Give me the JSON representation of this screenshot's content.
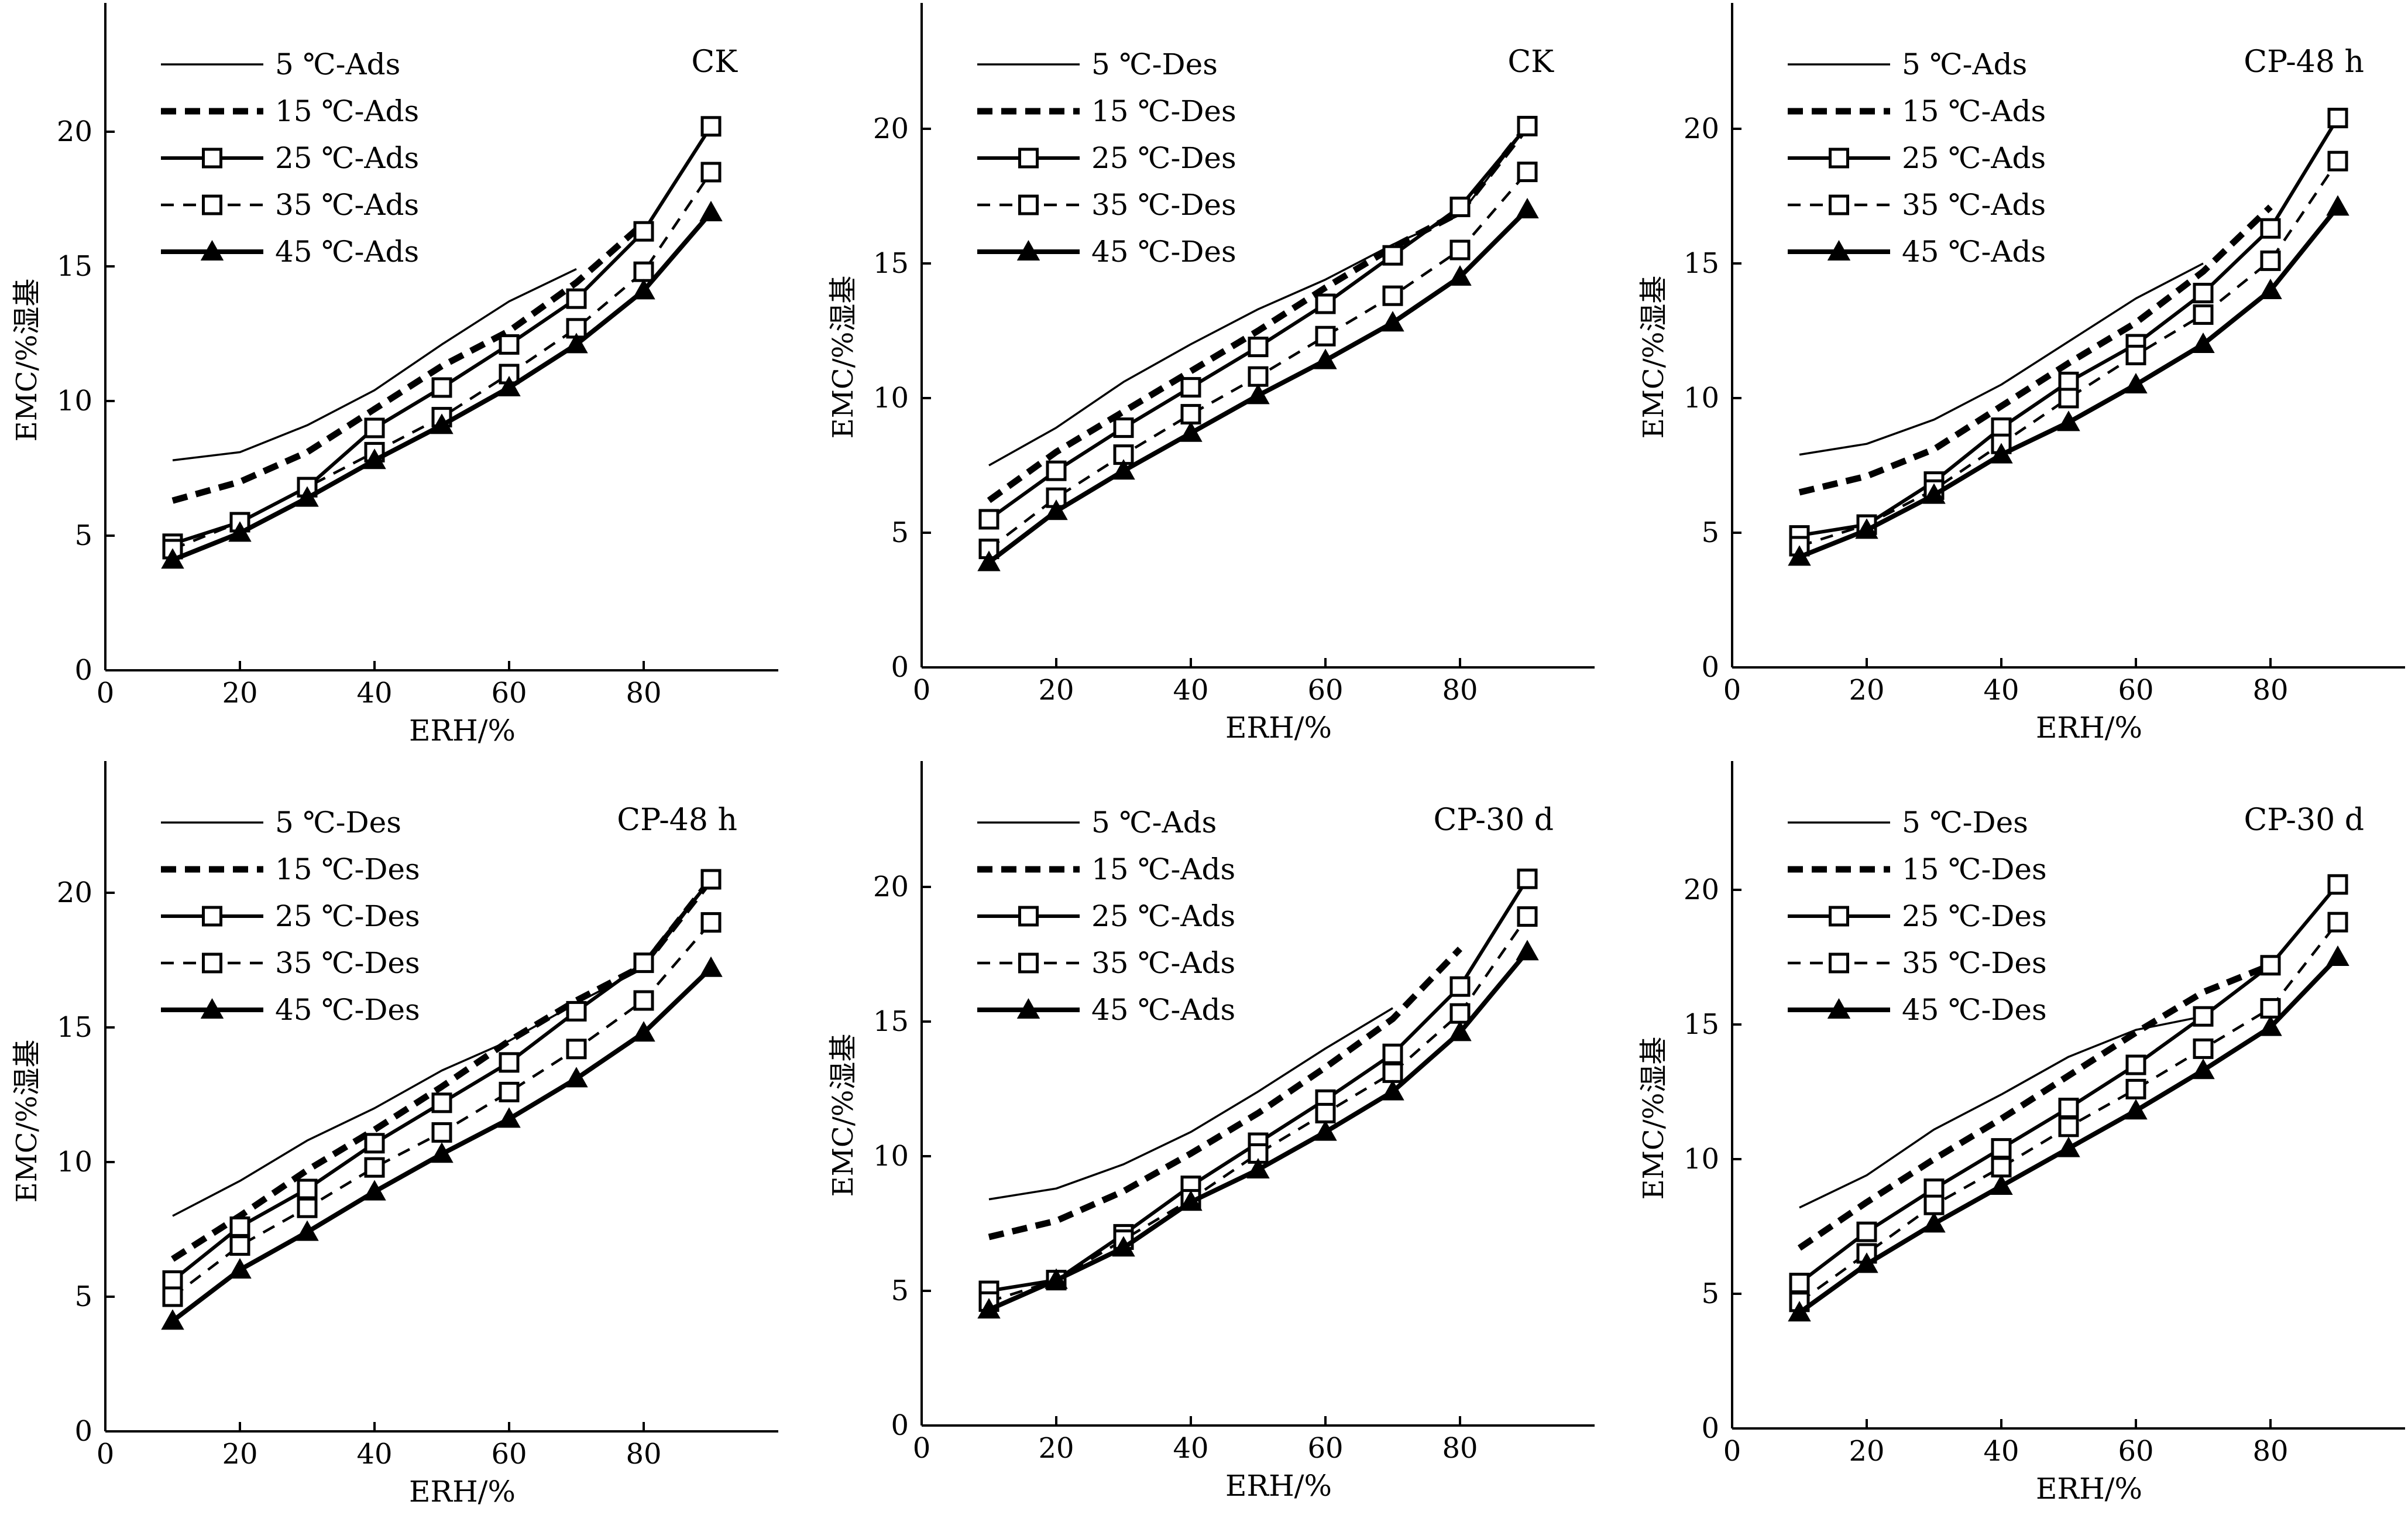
{
  "chart_data": [
    {
      "type": "line",
      "title": "CK",
      "xlabel": "ERH/%",
      "ylabel": "EMC/%湿基",
      "xlim": [
        0,
        100
      ],
      "ylim": [
        0,
        25
      ],
      "xticks": [
        "0",
        "20",
        "40",
        "60",
        "80"
      ],
      "yticks": [
        "0",
        "5",
        "10",
        "15",
        "20"
      ],
      "grid": false,
      "legend_position": "top-left",
      "series": [
        {
          "name": "5 ℃-Ads",
          "x": [
            10,
            20,
            30,
            40,
            50,
            60,
            70
          ],
          "values": [
            7.8,
            8.1,
            9.1,
            10.4,
            12.1,
            13.7,
            14.9
          ]
        },
        {
          "name": "15 ℃-Ads",
          "x": [
            10,
            20,
            30,
            40,
            50,
            60,
            70,
            80
          ],
          "values": [
            6.3,
            7.0,
            8.1,
            9.7,
            11.3,
            12.6,
            14.4,
            16.6
          ]
        },
        {
          "name": "25 ℃-Ads",
          "x": [
            10,
            20,
            30,
            40,
            50,
            60,
            70,
            80,
            90
          ],
          "values": [
            4.7,
            5.5,
            6.8,
            9.0,
            10.5,
            12.1,
            13.8,
            16.3,
            20.2
          ]
        },
        {
          "name": "35 ℃-Ads",
          "x": [
            10,
            20,
            30,
            40,
            50,
            60,
            70,
            80,
            90
          ],
          "values": [
            4.5,
            5.5,
            6.8,
            8.1,
            9.4,
            11.0,
            12.7,
            14.8,
            18.5
          ]
        },
        {
          "name": "45 ℃-Ads",
          "x": [
            10,
            20,
            30,
            40,
            50,
            60,
            70,
            80,
            90
          ],
          "values": [
            4.1,
            5.1,
            6.4,
            7.8,
            9.1,
            10.5,
            12.1,
            14.1,
            17.0
          ]
        }
      ]
    },
    {
      "type": "line",
      "title": "CK",
      "xlabel": "ERH/%",
      "ylabel": "EMC/%湿基",
      "xlim": [
        0,
        100
      ],
      "ylim": [
        0,
        25
      ],
      "xticks": [
        "0",
        "20",
        "40",
        "60",
        "80"
      ],
      "yticks": [
        "0",
        "5",
        "10",
        "15",
        "20"
      ],
      "grid": false,
      "legend_position": "top-left",
      "series": [
        {
          "name": "5 ℃-Des",
          "x": [
            10,
            20,
            30,
            40,
            50,
            60,
            70,
            80,
            90
          ],
          "values": [
            7.5,
            8.9,
            10.6,
            12.0,
            13.3,
            14.4,
            15.7,
            16.8,
            20.1
          ]
        },
        {
          "name": "15 ℃-Des",
          "x": [
            10,
            20,
            30,
            40,
            50,
            60,
            70,
            80,
            90
          ],
          "values": [
            6.2,
            8.0,
            9.5,
            11.0,
            12.5,
            14.1,
            15.6,
            16.9,
            20.1
          ]
        },
        {
          "name": "25 ℃-Des",
          "x": [
            10,
            20,
            30,
            40,
            50,
            60,
            70,
            80,
            90
          ],
          "values": [
            5.5,
            7.3,
            8.9,
            10.4,
            11.9,
            13.5,
            15.3,
            17.1,
            20.1
          ]
        },
        {
          "name": "35 ℃-Des",
          "x": [
            10,
            20,
            30,
            40,
            50,
            60,
            70,
            80,
            90
          ],
          "values": [
            4.4,
            6.3,
            7.9,
            9.4,
            10.8,
            12.3,
            13.8,
            15.5,
            18.4
          ]
        },
        {
          "name": "45 ℃-Des",
          "x": [
            10,
            20,
            30,
            40,
            50,
            60,
            70,
            80,
            90
          ],
          "values": [
            3.9,
            5.8,
            7.3,
            8.7,
            10.1,
            11.4,
            12.8,
            14.5,
            17.0
          ]
        }
      ]
    },
    {
      "type": "line",
      "title": "CP-48 h",
      "xlabel": "ERH/%",
      "ylabel": "EMC/%湿基",
      "xlim": [
        0,
        100
      ],
      "ylim": [
        0,
        25
      ],
      "xticks": [
        "0",
        "20",
        "40",
        "60",
        "80"
      ],
      "yticks": [
        "0",
        "5",
        "10",
        "15",
        "20"
      ],
      "grid": false,
      "legend_position": "top-left",
      "series": [
        {
          "name": "5 ℃-Ads",
          "x": [
            10,
            20,
            30,
            40,
            50,
            60,
            70
          ],
          "values": [
            7.9,
            8.3,
            9.2,
            10.5,
            12.1,
            13.7,
            15.0
          ]
        },
        {
          "name": "15 ℃-Ads",
          "x": [
            10,
            20,
            30,
            40,
            50,
            60,
            70,
            80
          ],
          "values": [
            6.5,
            7.1,
            8.1,
            9.7,
            11.3,
            12.8,
            14.7,
            17.1
          ]
        },
        {
          "name": "25 ℃-Ads",
          "x": [
            10,
            20,
            30,
            40,
            50,
            60,
            70,
            80,
            90
          ],
          "values": [
            4.9,
            5.3,
            6.9,
            8.9,
            10.6,
            12.0,
            13.9,
            16.3,
            20.4
          ]
        },
        {
          "name": "35 ℃-Ads",
          "x": [
            10,
            20,
            30,
            40,
            50,
            60,
            70,
            80,
            90
          ],
          "values": [
            4.5,
            5.3,
            6.6,
            8.3,
            10.0,
            11.6,
            13.1,
            15.1,
            18.8
          ]
        },
        {
          "name": "45 ℃-Ads",
          "x": [
            10,
            20,
            30,
            40,
            50,
            60,
            70,
            80,
            90
          ],
          "values": [
            4.1,
            5.1,
            6.4,
            7.9,
            9.1,
            10.5,
            12.0,
            14.0,
            17.1
          ]
        }
      ]
    },
    {
      "type": "line",
      "title": "CP-48 h",
      "xlabel": "ERH/%",
      "ylabel": "EMC/%湿基",
      "xlim": [
        0,
        100
      ],
      "ylim": [
        0,
        25
      ],
      "xticks": [
        "0",
        "20",
        "40",
        "60",
        "80"
      ],
      "yticks": [
        "0",
        "5",
        "10",
        "15",
        "20"
      ],
      "grid": false,
      "legend_position": "top-left",
      "series": [
        {
          "name": "5 ℃-Des",
          "x": [
            10,
            20,
            30,
            40,
            50,
            60,
            70,
            80,
            90
          ],
          "values": [
            8.0,
            9.3,
            10.8,
            12.0,
            13.4,
            14.5,
            15.9,
            17.2,
            20.5
          ]
        },
        {
          "name": "15 ℃-Des",
          "x": [
            10,
            20,
            30,
            40,
            50,
            60,
            70,
            80,
            90
          ],
          "values": [
            6.4,
            8.0,
            9.7,
            11.2,
            12.8,
            14.5,
            16.0,
            17.3,
            20.5
          ]
        },
        {
          "name": "25 ℃-Des",
          "x": [
            10,
            20,
            30,
            40,
            50,
            60,
            70,
            80,
            90
          ],
          "values": [
            5.6,
            7.6,
            9.0,
            10.7,
            12.2,
            13.7,
            15.6,
            17.4,
            20.5
          ]
        },
        {
          "name": "35 ℃-Des",
          "x": [
            10,
            20,
            30,
            40,
            50,
            60,
            70,
            80,
            90
          ],
          "values": [
            5.0,
            6.9,
            8.3,
            9.8,
            11.1,
            12.6,
            14.2,
            16.0,
            18.9
          ]
        },
        {
          "name": "45 ℃-Des",
          "x": [
            10,
            20,
            30,
            40,
            50,
            60,
            70,
            80,
            90
          ],
          "values": [
            4.1,
            6.0,
            7.4,
            8.9,
            10.3,
            11.6,
            13.1,
            14.8,
            17.2
          ]
        }
      ]
    },
    {
      "type": "line",
      "title": "CP-30 d",
      "xlabel": "ERH/%",
      "ylabel": "EMC/%湿基",
      "xlim": [
        0,
        100
      ],
      "ylim": [
        0,
        25
      ],
      "xticks": [
        "0",
        "20",
        "40",
        "60",
        "80"
      ],
      "yticks": [
        "0",
        "5",
        "10",
        "15",
        "20"
      ],
      "grid": false,
      "legend_position": "top-left",
      "series": [
        {
          "name": "5 ℃-Ads",
          "x": [
            10,
            20,
            30,
            40,
            50,
            60,
            70
          ],
          "values": [
            8.4,
            8.8,
            9.7,
            10.9,
            12.4,
            14.0,
            15.5
          ]
        },
        {
          "name": "15 ℃-Ads",
          "x": [
            10,
            20,
            30,
            40,
            50,
            60,
            70,
            80
          ],
          "values": [
            7.0,
            7.6,
            8.7,
            10.1,
            11.6,
            13.3,
            15.1,
            17.7
          ]
        },
        {
          "name": "25 ℃-Ads",
          "x": [
            10,
            20,
            30,
            40,
            50,
            60,
            70,
            80,
            90
          ],
          "values": [
            5.0,
            5.4,
            7.1,
            8.9,
            10.5,
            12.1,
            13.8,
            16.3,
            20.3
          ]
        },
        {
          "name": "35 ℃-Ads",
          "x": [
            10,
            20,
            30,
            40,
            50,
            60,
            70,
            80,
            90
          ],
          "values": [
            4.6,
            5.4,
            6.9,
            8.4,
            10.1,
            11.6,
            13.1,
            15.3,
            18.9
          ]
        },
        {
          "name": "45 ℃-Ads",
          "x": [
            10,
            20,
            30,
            40,
            50,
            60,
            70,
            80,
            90
          ],
          "values": [
            4.3,
            5.4,
            6.6,
            8.3,
            9.5,
            10.9,
            12.4,
            14.6,
            17.6
          ]
        }
      ]
    },
    {
      "type": "line",
      "title": "CP-30 d",
      "xlabel": "ERH/%",
      "ylabel": "EMC/%湿基",
      "xlim": [
        0,
        100
      ],
      "ylim": [
        0,
        25
      ],
      "xticks": [
        "0",
        "20",
        "40",
        "60",
        "80"
      ],
      "yticks": [
        "0",
        "5",
        "10",
        "15",
        "20"
      ],
      "grid": false,
      "legend_position": "top-left",
      "series": [
        {
          "name": "5 ℃-Des",
          "x": [
            10,
            20,
            30,
            40,
            50,
            60,
            70
          ],
          "values": [
            8.2,
            9.4,
            11.1,
            12.4,
            13.8,
            14.8,
            15.3
          ]
        },
        {
          "name": "15 ℃-Des",
          "x": [
            10,
            20,
            30,
            40,
            50,
            60,
            70,
            80
          ],
          "values": [
            6.7,
            8.4,
            10.0,
            11.5,
            13.1,
            14.7,
            16.2,
            17.2
          ]
        },
        {
          "name": "25 ℃-Des",
          "x": [
            10,
            20,
            30,
            40,
            50,
            60,
            70,
            80,
            90
          ],
          "values": [
            5.4,
            7.3,
            8.9,
            10.4,
            11.9,
            13.5,
            15.3,
            17.2,
            20.2
          ]
        },
        {
          "name": "35 ℃-Des",
          "x": [
            10,
            20,
            30,
            40,
            50,
            60,
            70,
            80,
            90
          ],
          "values": [
            4.7,
            6.5,
            8.3,
            9.7,
            11.2,
            12.6,
            14.1,
            15.6,
            18.8
          ]
        },
        {
          "name": "45 ℃-Des",
          "x": [
            10,
            20,
            30,
            40,
            50,
            60,
            70,
            80,
            90
          ],
          "values": [
            4.3,
            6.1,
            7.6,
            9.0,
            10.4,
            11.8,
            13.3,
            14.9,
            17.5
          ]
        }
      ]
    }
  ]
}
